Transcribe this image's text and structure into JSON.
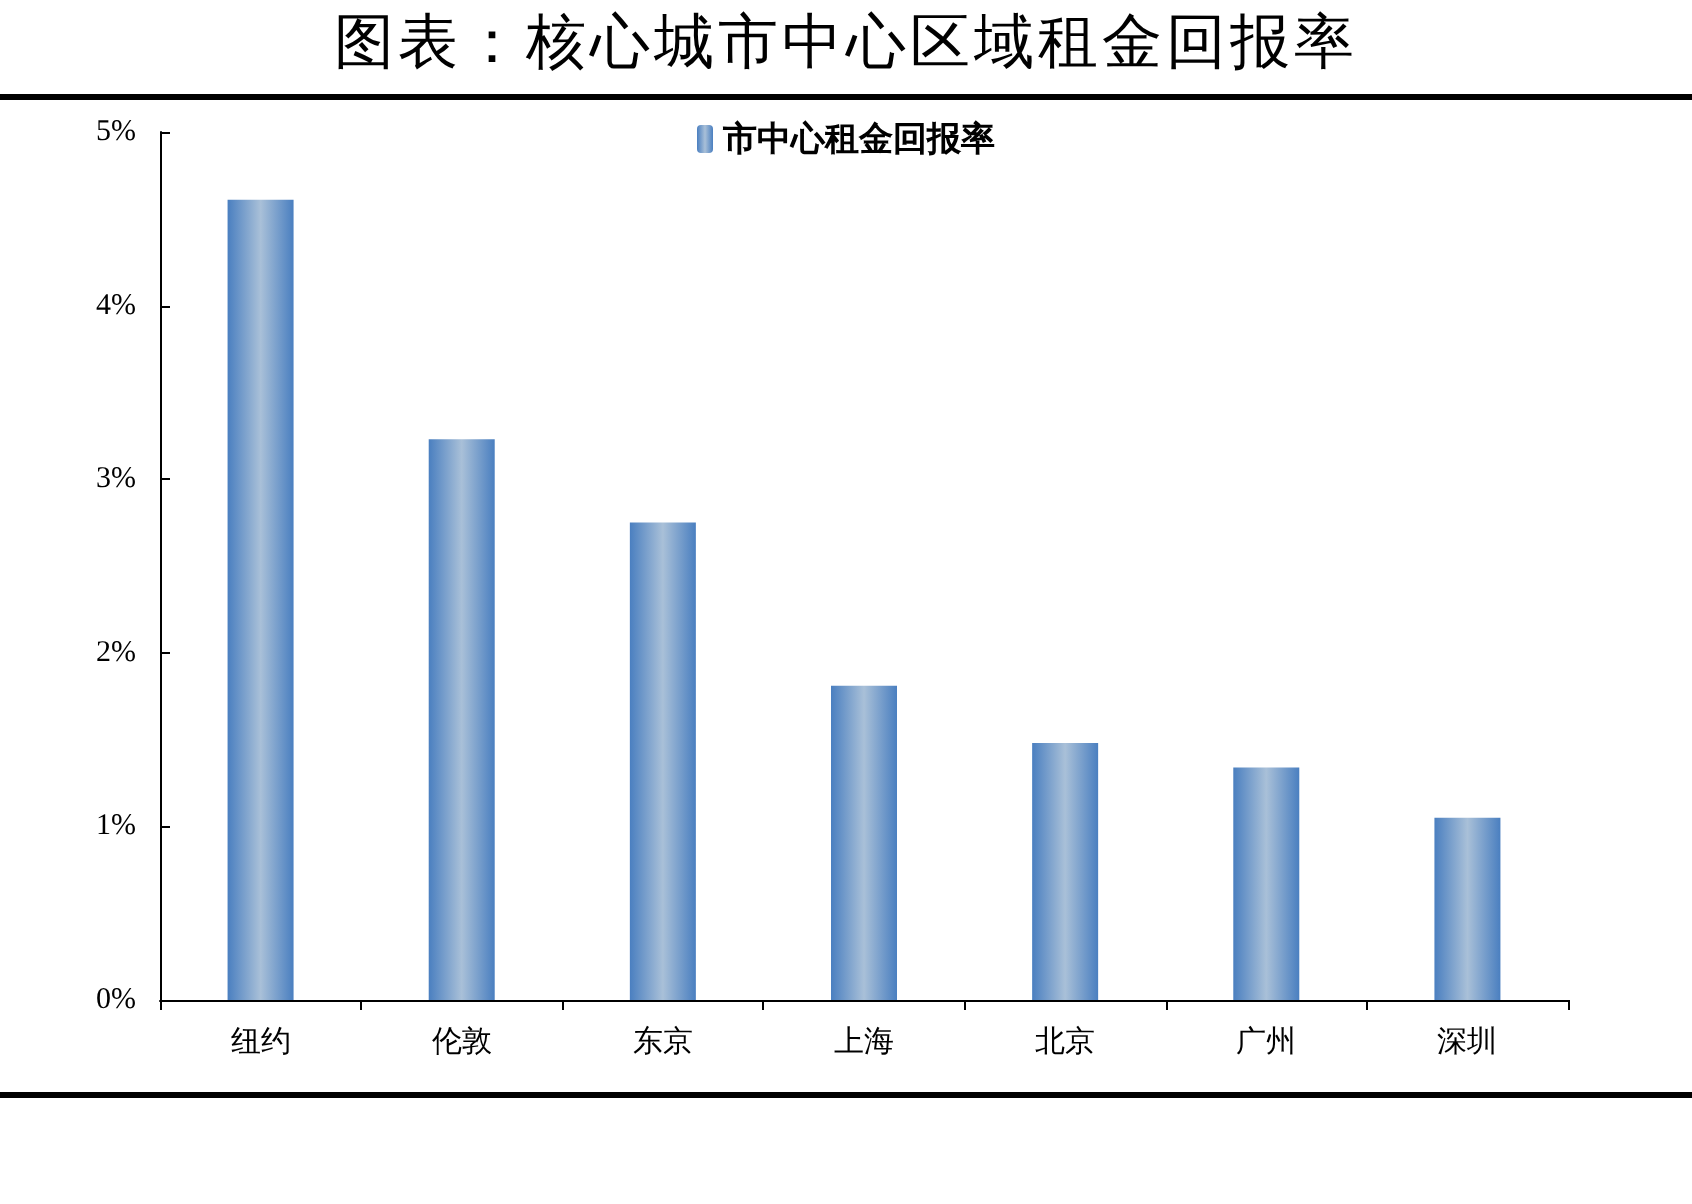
{
  "chart_data": {
    "type": "bar",
    "title": "图表：核心城市中心区域租金回报率",
    "categories": [
      "纽约",
      "伦敦",
      "东京",
      "上海",
      "北京",
      "广州",
      "深圳"
    ],
    "series": [
      {
        "name": "市中心租金回报率",
        "color": "#4a7fc0",
        "values": [
          4.61,
          3.23,
          2.75,
          1.81,
          1.48,
          1.34,
          1.05
        ]
      }
    ],
    "ylim": [
      0,
      5
    ],
    "yticks": [
      {
        "value": 0,
        "label": "0%"
      },
      {
        "value": 1,
        "label": "1%"
      },
      {
        "value": 2,
        "label": "2%"
      },
      {
        "value": 3,
        "label": "3%"
      },
      {
        "value": 4,
        "label": "4%"
      },
      {
        "value": 5,
        "label": "5%"
      }
    ],
    "grid": false,
    "legend": "top"
  }
}
